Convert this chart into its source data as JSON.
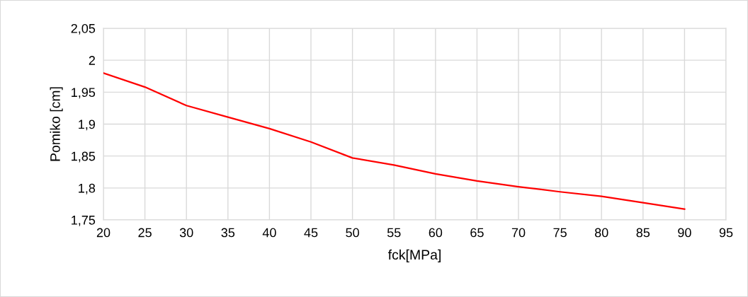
{
  "chart_data": {
    "type": "line",
    "xlabel": "fck[MPa]",
    "ylabel": "Pomiko [cm]",
    "x": [
      20,
      25,
      30,
      35,
      40,
      45,
      50,
      55,
      60,
      65,
      70,
      75,
      80,
      85,
      90
    ],
    "series": [
      {
        "color": "#ff0000",
        "values": [
          1.98,
          1.958,
          1.929,
          1.911,
          1.893,
          1.872,
          1.847,
          1.836,
          1.822,
          1.811,
          1.802,
          1.794,
          1.787,
          1.777,
          1.767
        ]
      }
    ],
    "xlim": [
      20,
      95
    ],
    "xticks": [
      20,
      25,
      30,
      35,
      40,
      45,
      50,
      55,
      60,
      65,
      70,
      75,
      80,
      85,
      90,
      95
    ],
    "ylim": [
      1.75,
      2.05
    ],
    "yticks": [
      {
        "value": 1.75,
        "label": "1,75"
      },
      {
        "value": 1.8,
        "label": "1,8"
      },
      {
        "value": 1.85,
        "label": "1,85"
      },
      {
        "value": 1.9,
        "label": "1,9"
      },
      {
        "value": 1.95,
        "label": "1,95"
      },
      {
        "value": 2,
        "label": "2"
      },
      {
        "value": 2.05,
        "label": "2,05"
      }
    ],
    "grid": true,
    "legend": false,
    "marker": "none",
    "line_style": "solid"
  }
}
